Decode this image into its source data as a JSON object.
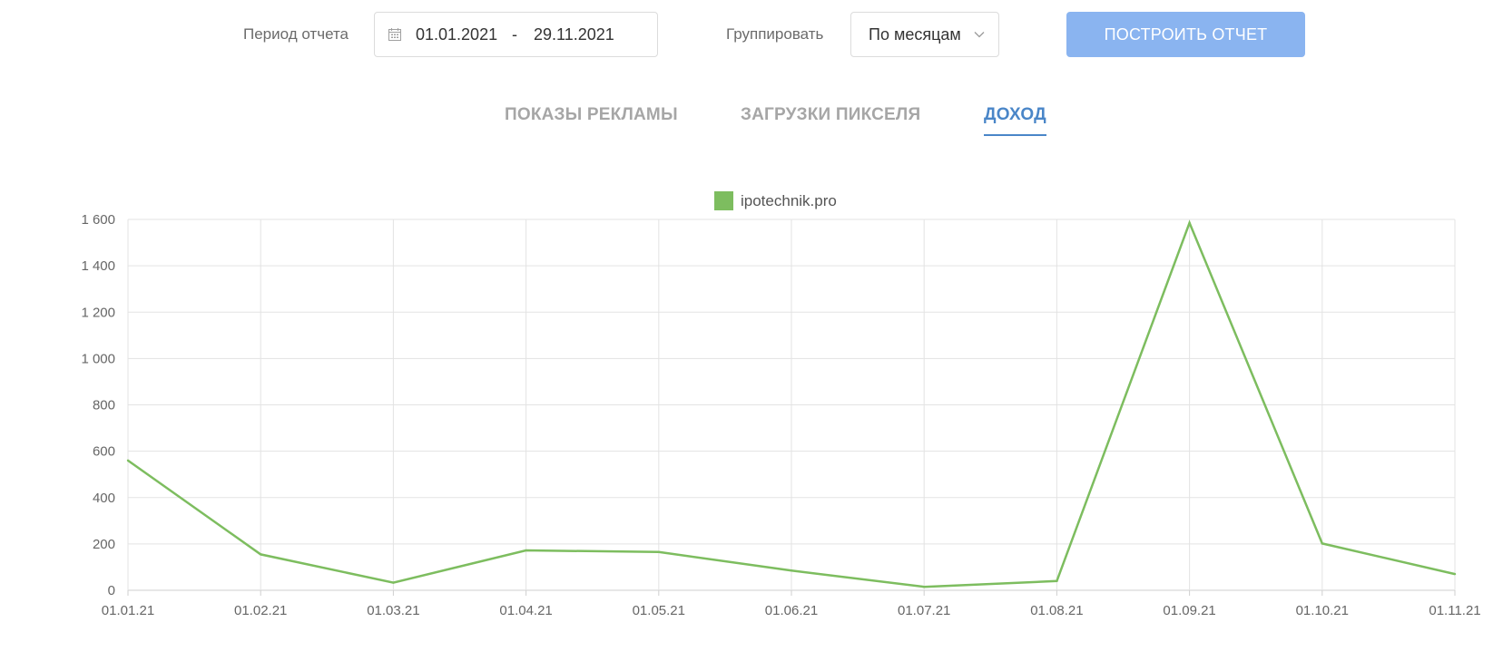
{
  "filters": {
    "period_label": "Период отчета",
    "date_from": "01.01.2021",
    "date_separator": "-",
    "date_to": "29.11.2021",
    "group_label": "Группировать",
    "group_value": "По месяцам",
    "build_button": "ПОСТРОИТЬ ОТЧЕТ"
  },
  "icons": {
    "calendar": "calendar-icon",
    "dropdown": "chevron-down-icon"
  },
  "tabs": [
    {
      "label": "ПОКАЗЫ РЕКЛАМЫ",
      "active": false
    },
    {
      "label": "ЗАГРУЗКИ ПИКСЕЛЯ",
      "active": false
    },
    {
      "label": "ДОХОД",
      "active": true
    }
  ],
  "colors": {
    "accent": "#4a86c8",
    "button": "#8ab4f0",
    "series": "#7dbd5f",
    "grid": "#e3e3e3"
  },
  "chart_data": {
    "type": "line",
    "x": [
      "01.01.21",
      "01.02.21",
      "01.03.21",
      "01.04.21",
      "01.05.21",
      "01.06.21",
      "01.07.21",
      "01.08.21",
      "01.09.21",
      "01.10.21",
      "01.11.21"
    ],
    "series": [
      {
        "name": "ipotechnik.pro",
        "values": [
          560,
          155,
          33,
          172,
          165,
          85,
          15,
          40,
          1585,
          202,
          70
        ]
      }
    ],
    "y_ticks": [
      "0",
      "200",
      "400",
      "600",
      "800",
      "1 000",
      "1 200",
      "1 400",
      "1 600"
    ],
    "ylim": [
      0,
      1600
    ],
    "grid": true,
    "legend_position": "top-center"
  }
}
